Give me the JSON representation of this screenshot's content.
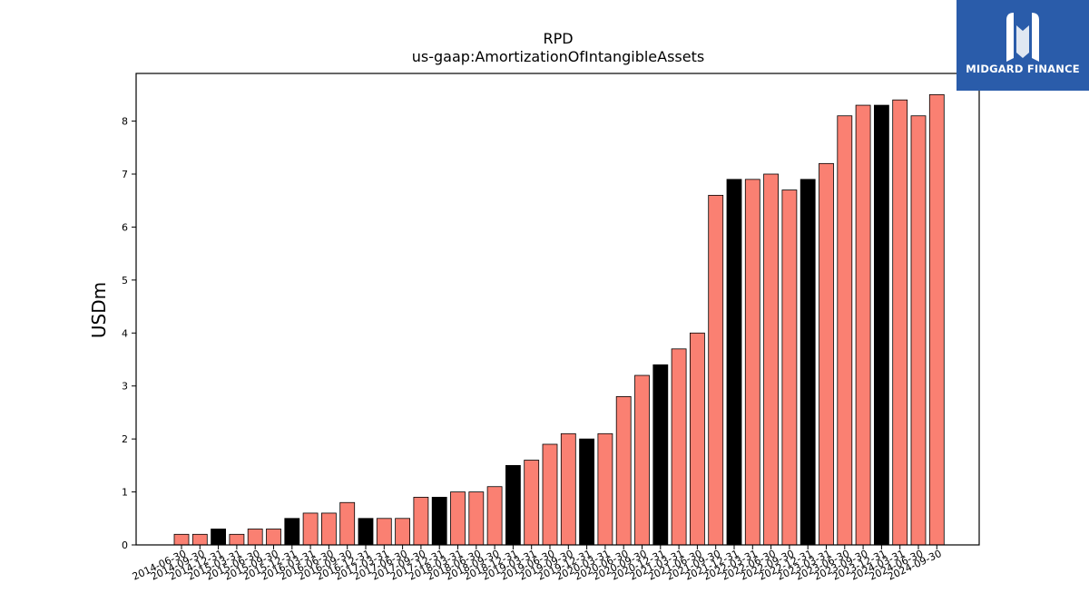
{
  "brand": {
    "name": "MIDGARD FINANCE",
    "logo_icon": "midgard-logo-icon",
    "background": "#2a5caa"
  },
  "chart_data": {
    "type": "bar",
    "title": "RPD",
    "subtitle": "us-gaap:AmortizationOfIntangibleAssets",
    "ylabel": "USDm",
    "xlabel": "",
    "ylim": [
      0,
      8.9
    ],
    "yticks": [
      0,
      1,
      2,
      3,
      4,
      5,
      6,
      7,
      8
    ],
    "colors": {
      "default": "#fa8072",
      "highlight": "#000000"
    },
    "categories": [
      "2014-06-30",
      "2014-09-30",
      "2014-12-31",
      "2015-03-31",
      "2015-06-30",
      "2015-09-30",
      "2015-12-31",
      "2016-03-31",
      "2016-06-30",
      "2016-09-30",
      "2016-12-31",
      "2017-03-31",
      "2017-06-30",
      "2017-09-30",
      "2017-12-31",
      "2018-03-31",
      "2018-06-30",
      "2018-09-30",
      "2018-12-31",
      "2019-03-31",
      "2019-06-30",
      "2019-09-30",
      "2019-12-31",
      "2020-03-31",
      "2020-06-30",
      "2020-09-30",
      "2020-12-31",
      "2021-03-31",
      "2021-06-30",
      "2021-09-30",
      "2021-12-31",
      "2022-03-31",
      "2022-06-30",
      "2022-09-30",
      "2022-12-31",
      "2023-03-31",
      "2023-06-30",
      "2023-09-30",
      "2023-12-31",
      "2024-03-31",
      "2024-06-30",
      "2024-09-30"
    ],
    "values": [
      0.2,
      0.2,
      0.3,
      0.2,
      0.3,
      0.3,
      0.5,
      0.6,
      0.6,
      0.8,
      0.5,
      0.5,
      0.5,
      0.9,
      0.9,
      1.0,
      1.0,
      1.1,
      1.5,
      1.6,
      1.9,
      2.1,
      2.0,
      2.1,
      2.8,
      3.2,
      3.4,
      3.7,
      4.0,
      6.6,
      6.9,
      6.9,
      7.0,
      6.7,
      6.9,
      7.2,
      8.1,
      8.3,
      8.3,
      8.4,
      8.1,
      8.5
    ],
    "highlighted": [
      false,
      false,
      true,
      false,
      false,
      false,
      true,
      false,
      false,
      false,
      true,
      false,
      false,
      false,
      true,
      false,
      false,
      false,
      true,
      false,
      false,
      false,
      true,
      false,
      false,
      false,
      true,
      false,
      false,
      false,
      true,
      false,
      false,
      false,
      true,
      false,
      false,
      false,
      true,
      false,
      false,
      false
    ]
  }
}
